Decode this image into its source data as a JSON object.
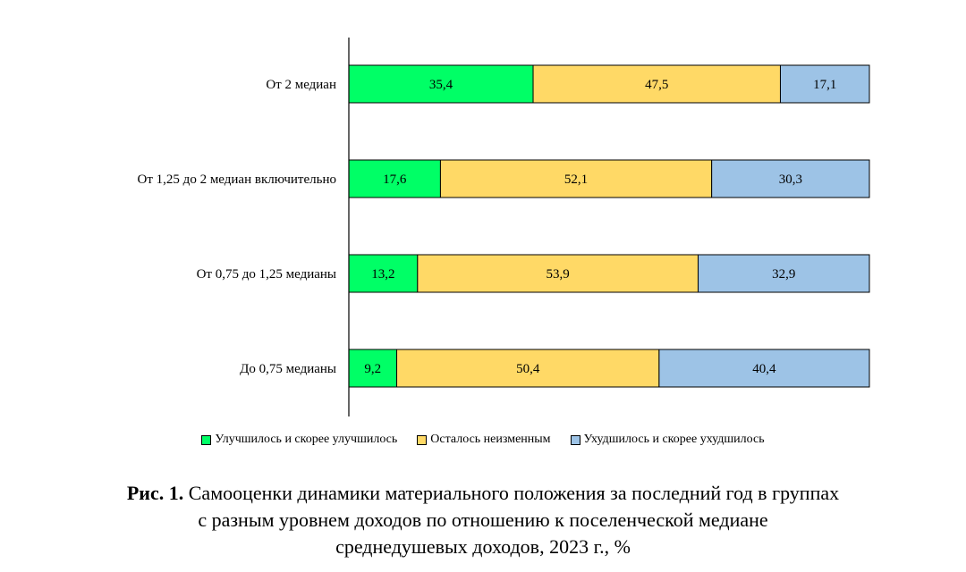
{
  "chart_data": {
    "type": "bar",
    "orientation": "horizontal",
    "stacked": true,
    "categories": [
      "От 2 медиан",
      "От 1,25 до 2 медиан включительно",
      "От 0,75 до 1,25 медианы",
      "До 0,75 медианы"
    ],
    "series": [
      {
        "name": "Улучшилось и скорее улучшилось",
        "color": "#00ff66",
        "values": [
          35.4,
          17.6,
          13.2,
          9.2
        ],
        "labels": [
          "35,4",
          "17,6",
          "13,2",
          "9,2"
        ]
      },
      {
        "name": "Осталось неизменным",
        "color": "#ffd966",
        "values": [
          47.5,
          52.1,
          53.9,
          50.4
        ],
        "labels": [
          "47,5",
          "52,1",
          "53,9",
          "50,4"
        ]
      },
      {
        "name": "Ухудшилось и скорее ухудшилось",
        "color": "#9dc3e6",
        "values": [
          17.1,
          30.3,
          32.9,
          40.4
        ],
        "labels": [
          "17,1",
          "30,3",
          "32,9",
          "40,4"
        ]
      }
    ],
    "xlim": [
      0,
      100
    ],
    "legend_position": "bottom",
    "grid": false
  },
  "caption": {
    "prefix": "Рис. 1.",
    "line1": " Самооценки динамики материального положения за последний год в группах",
    "line2": "с разным уровнем доходов  по отношению к поселенческой медиане",
    "line3": "среднедушевых доходов, 2023 г., %"
  }
}
